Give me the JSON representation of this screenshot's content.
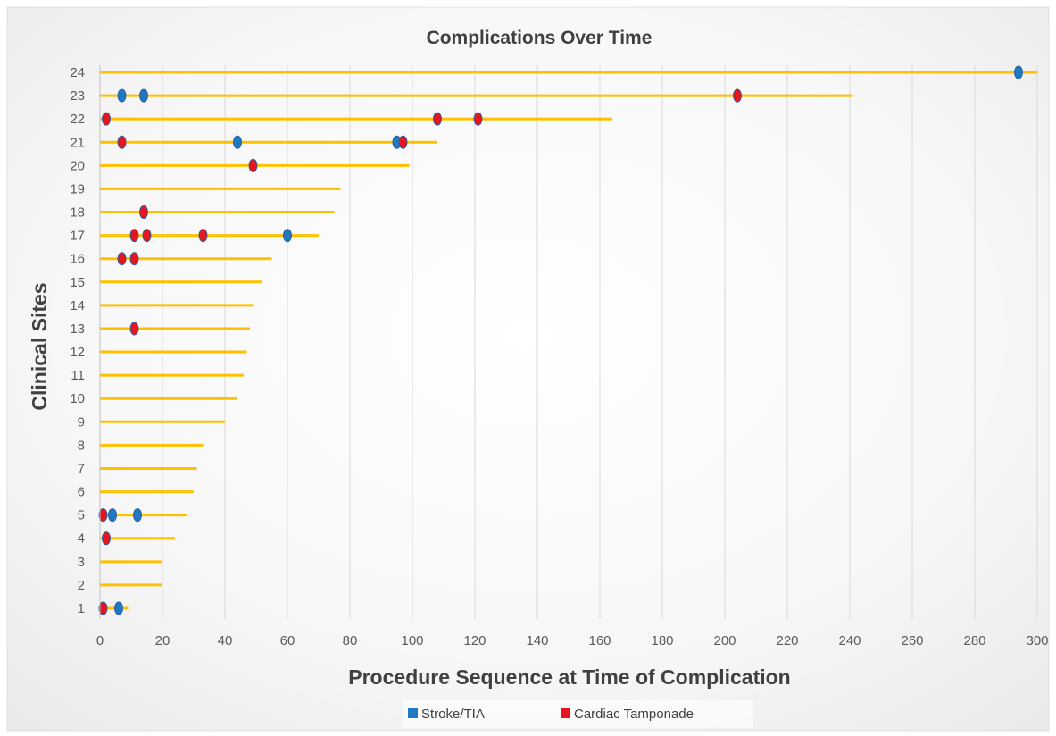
{
  "chart_data": {
    "type": "scatter",
    "title": "Complications Over Time",
    "xlabel": "Procedure Sequence at Time of Complication",
    "ylabel": "Clinical Sites",
    "xlim": [
      0,
      300
    ],
    "x_ticks": [
      0,
      20,
      40,
      60,
      80,
      100,
      120,
      140,
      160,
      180,
      200,
      220,
      240,
      260,
      280,
      300
    ],
    "y_ticks": [
      1,
      2,
      3,
      4,
      5,
      6,
      7,
      8,
      9,
      10,
      11,
      12,
      13,
      14,
      15,
      16,
      17,
      18,
      19,
      20,
      21,
      22,
      23,
      24
    ],
    "grid": "vertical",
    "legend_position": "bottom",
    "colors": {
      "bar": "#FFC000",
      "stroke": "#1F78C1",
      "tamponade": "#E8141E",
      "grid": "#D9D9D9"
    },
    "site_procedures": [
      {
        "site": 1,
        "procedures": 9
      },
      {
        "site": 2,
        "procedures": 20
      },
      {
        "site": 3,
        "procedures": 20
      },
      {
        "site": 4,
        "procedures": 24
      },
      {
        "site": 5,
        "procedures": 28
      },
      {
        "site": 6,
        "procedures": 30
      },
      {
        "site": 7,
        "procedures": 31
      },
      {
        "site": 8,
        "procedures": 33
      },
      {
        "site": 9,
        "procedures": 40
      },
      {
        "site": 10,
        "procedures": 44
      },
      {
        "site": 11,
        "procedures": 46
      },
      {
        "site": 12,
        "procedures": 47
      },
      {
        "site": 13,
        "procedures": 48
      },
      {
        "site": 14,
        "procedures": 49
      },
      {
        "site": 15,
        "procedures": 52
      },
      {
        "site": 16,
        "procedures": 55
      },
      {
        "site": 17,
        "procedures": 70
      },
      {
        "site": 18,
        "procedures": 75
      },
      {
        "site": 19,
        "procedures": 77
      },
      {
        "site": 20,
        "procedures": 99
      },
      {
        "site": 21,
        "procedures": 108
      },
      {
        "site": 22,
        "procedures": 164
      },
      {
        "site": 23,
        "procedures": 241
      },
      {
        "site": 24,
        "procedures": 300
      }
    ],
    "series": [
      {
        "name": "Stroke/TIA",
        "points": [
          {
            "site": 1,
            "x": 6
          },
          {
            "site": 5,
            "x": 4
          },
          {
            "site": 5,
            "x": 12
          },
          {
            "site": 17,
            "x": 60
          },
          {
            "site": 21,
            "x": 44
          },
          {
            "site": 21,
            "x": 95
          },
          {
            "site": 23,
            "x": 7
          },
          {
            "site": 23,
            "x": 14
          },
          {
            "site": 24,
            "x": 294
          }
        ]
      },
      {
        "name": "Cardiac Tamponade",
        "points": [
          {
            "site": 1,
            "x": 1
          },
          {
            "site": 4,
            "x": 2
          },
          {
            "site": 5,
            "x": 1
          },
          {
            "site": 13,
            "x": 11
          },
          {
            "site": 16,
            "x": 7
          },
          {
            "site": 16,
            "x": 11
          },
          {
            "site": 17,
            "x": 11
          },
          {
            "site": 17,
            "x": 15
          },
          {
            "site": 17,
            "x": 33
          },
          {
            "site": 18,
            "x": 14
          },
          {
            "site": 20,
            "x": 49
          },
          {
            "site": 21,
            "x": 7
          },
          {
            "site": 21,
            "x": 97
          },
          {
            "site": 22,
            "x": 2
          },
          {
            "site": 22,
            "x": 108
          },
          {
            "site": 22,
            "x": 121
          },
          {
            "site": 23,
            "x": 204
          }
        ]
      }
    ]
  }
}
